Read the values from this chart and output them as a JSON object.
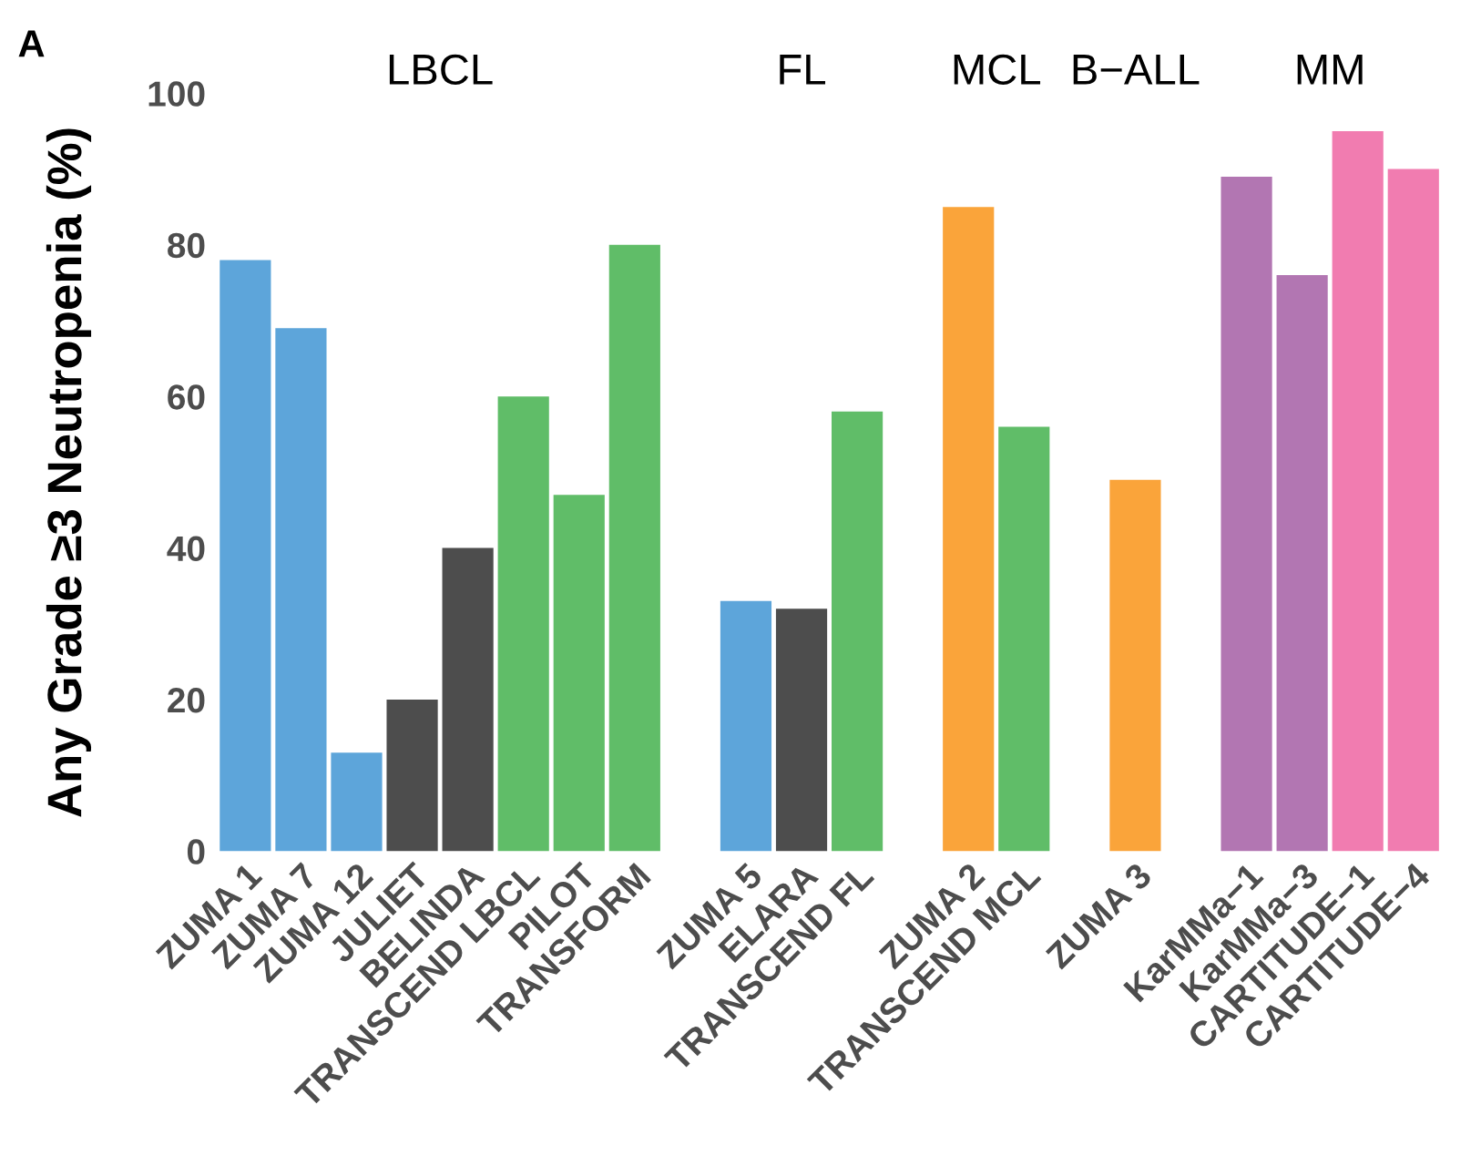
{
  "chart_data": {
    "type": "bar",
    "title": "A",
    "ylabel": "Any Grade ≥3 Neutropenia (%)",
    "categories": [
      "ZUMA 1",
      "ZUMA 7",
      "ZUMA 12",
      "JULIET",
      "BELINDA",
      "TRANSCEND LBCL",
      "PILOT",
      "TRANSFORM",
      null,
      "ZUMA 5",
      "ELARA",
      "TRANSCEND FL",
      null,
      "ZUMA 2",
      "TRANSCEND MCL",
      null,
      "ZUMA 3",
      null,
      "KarMMa−1",
      "KarMMa−3",
      "CARTITUDE−1",
      "CARTITUDE−4"
    ],
    "values": [
      78,
      69,
      13,
      20,
      40,
      60,
      47,
      80,
      null,
      33,
      32,
      58,
      null,
      85,
      56,
      null,
      49,
      null,
      89,
      76,
      95,
      90
    ],
    "colors": [
      "#5da5da",
      "#5da5da",
      "#5da5da",
      "#4d4d4d",
      "#4d4d4d",
      "#60bd68",
      "#60bd68",
      "#60bd68",
      null,
      "#5da5da",
      "#4d4d4d",
      "#60bd68",
      null,
      "#faa43a",
      "#60bd68",
      null,
      "#faa43a",
      null,
      "#b276b2",
      "#b276b2",
      "#f17cb0",
      "#f17cb0"
    ],
    "annotations": [
      "LBCL",
      "FL",
      "MCL",
      "B−ALL",
      "MM"
    ],
    "ylim": [
      0,
      100
    ],
    "yticks": [
      0,
      20,
      40,
      60,
      80,
      100
    ],
    "grid": false
  }
}
